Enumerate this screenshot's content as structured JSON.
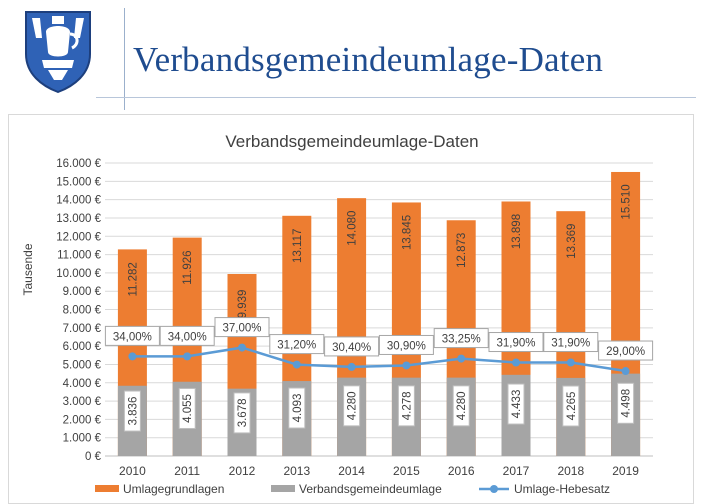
{
  "header": {
    "title": "Verbandsgemeindeumlage-Daten",
    "logo_icon": "coat-of-arms-icon",
    "logo_colors": {
      "blue": "#2f62b6",
      "white": "#ffffff",
      "outline": "#1d3f7d"
    }
  },
  "chart_data": {
    "type": "bar",
    "title": "Verbandsgemeindeumlage-Daten",
    "ylabel": "Tausende",
    "xlabel": "",
    "categories": [
      "2010",
      "2011",
      "2012",
      "2013",
      "2014",
      "2015",
      "2016",
      "2017",
      "2018",
      "2019"
    ],
    "ylim": [
      0,
      16000
    ],
    "yticks": [
      0,
      1000,
      2000,
      3000,
      4000,
      5000,
      6000,
      7000,
      8000,
      9000,
      10000,
      11000,
      12000,
      13000,
      14000,
      15000,
      16000
    ],
    "ytick_labels": [
      "0 €",
      "1.000 €",
      "2.000 €",
      "3.000 €",
      "4.000 €",
      "5.000 €",
      "6.000 €",
      "7.000 €",
      "8.000 €",
      "9.000 €",
      "10.000 €",
      "11.000 €",
      "12.000 €",
      "13.000 €",
      "14.000 €",
      "15.000 €",
      "16.000 €"
    ],
    "grid": true,
    "legend_position": "bottom",
    "series": [
      {
        "name": "Umlagegrundlagen",
        "kind": "bar",
        "color": "#ed7d31",
        "values": [
          11282,
          11926,
          9939,
          13117,
          14080,
          13845,
          12873,
          13898,
          13369,
          15510
        ],
        "labels": [
          "11.282",
          "11.926",
          "9.939",
          "13.117",
          "14.080",
          "13.845",
          "12.873",
          "13.898",
          "13.369",
          "15.510"
        ]
      },
      {
        "name": "Verbandsgemeindeumlage",
        "kind": "bar",
        "color": "#a5a5a5",
        "values": [
          3836,
          4055,
          3678,
          4093,
          4280,
          4278,
          4280,
          4433,
          4265,
          4498
        ],
        "labels": [
          "3.836",
          "4.055",
          "3.678",
          "4.093",
          "4.280",
          "4.278",
          "4.280",
          "4.433",
          "4.265",
          "4.498"
        ]
      },
      {
        "name": "Umlage-Hebesatz",
        "kind": "line",
        "color": "#5b9bd5",
        "values": [
          34.0,
          34.0,
          37.0,
          31.2,
          30.4,
          30.9,
          33.25,
          31.9,
          31.9,
          29.0
        ],
        "labels": [
          "34,00%",
          "34,00%",
          "37,00%",
          "31,20%",
          "30,40%",
          "30,90%",
          "33,25%",
          "31,90%",
          "31,90%",
          "29,00%"
        ],
        "scale_note": "plotted on primary axis as value × 160"
      }
    ]
  }
}
